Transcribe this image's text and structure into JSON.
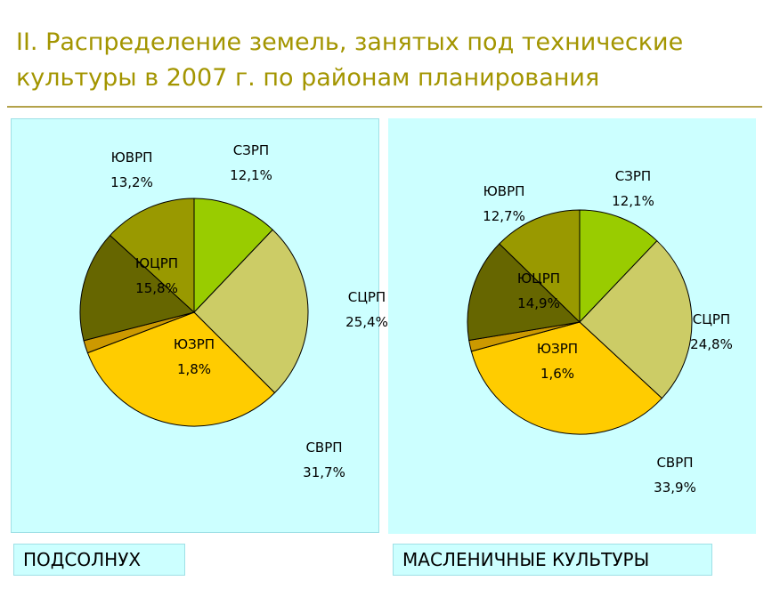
{
  "title": "II. Распределение земель, занятых под технические культуры в 2007 г. по районам планирования",
  "captions": [
    "ПОДСОЛНУХ",
    "МАСЛЕНИЧНЫЕ КУЛЬТУРЫ"
  ],
  "colors": {
    "background": "#ffffff",
    "title": "#a39500",
    "panel": "#ccffff",
    "rule": "#b3a24a"
  },
  "chart_data": [
    {
      "type": "pie",
      "title": "ПОДСОЛНУХ",
      "slices": [
        {
          "label": "СЗРП",
          "value": 12.1,
          "value_label": "12,1%",
          "color": "#99cc00"
        },
        {
          "label": "СЦРП",
          "value": 25.4,
          "value_label": "25,4%",
          "color": "#cccc66"
        },
        {
          "label": "СВРП",
          "value": 31.7,
          "value_label": "31,7%",
          "color": "#ffcc00"
        },
        {
          "label": "ЮЗРП",
          "value": 1.8,
          "value_label": "1,8%",
          "color": "#cc9900"
        },
        {
          "label": "ЮЦРП",
          "value": 15.8,
          "value_label": "15,8%",
          "color": "#666600"
        },
        {
          "label": "ЮВРП",
          "value": 13.2,
          "value_label": "13,2%",
          "color": "#999900"
        }
      ]
    },
    {
      "type": "pie",
      "title": "МАСЛЕНИЧНЫЕ КУЛЬТУРЫ",
      "slices": [
        {
          "label": "СЗРП",
          "value": 12.1,
          "value_label": "12,1%",
          "color": "#99cc00"
        },
        {
          "label": "СЦРП",
          "value": 24.8,
          "value_label": "24,8%",
          "color": "#cccc66"
        },
        {
          "label": "СВРП",
          "value": 33.9,
          "value_label": "33,9%",
          "color": "#ffcc00"
        },
        {
          "label": "ЮЗРП",
          "value": 1.6,
          "value_label": "1,6%",
          "color": "#cc9900"
        },
        {
          "label": "ЮЦРП",
          "value": 14.9,
          "value_label": "14,9%",
          "color": "#666600"
        },
        {
          "label": "ЮВРП",
          "value": 12.7,
          "value_label": "12,7%",
          "color": "#999900"
        }
      ]
    }
  ]
}
